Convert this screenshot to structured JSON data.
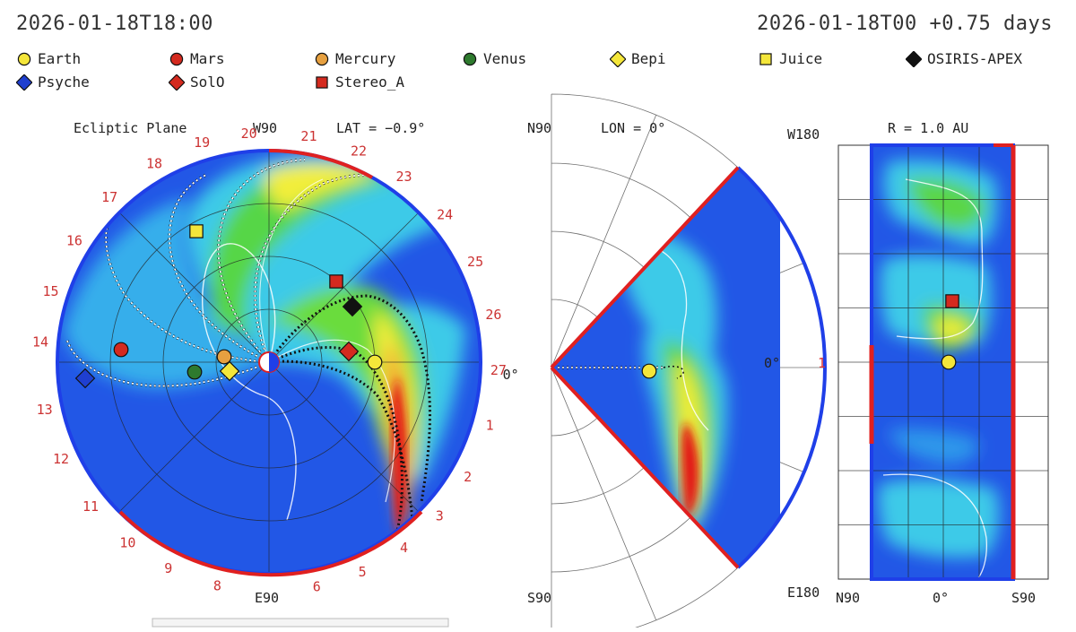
{
  "header": {
    "time_left": "2026-01-18T18:00",
    "time_right": "2026-01-18T00 +0.75 days"
  },
  "legend": [
    {
      "label": "Earth",
      "shape": "circle",
      "color": "#f4e63a"
    },
    {
      "label": "Mars",
      "shape": "circle",
      "color": "#d42a1f"
    },
    {
      "label": "Mercury",
      "shape": "circle",
      "color": "#e6a040"
    },
    {
      "label": "Venus",
      "shape": "circle",
      "color": "#2e7a2e"
    },
    {
      "label": "Bepi",
      "shape": "diamond",
      "color": "#f4e63a"
    },
    {
      "label": "Juice",
      "shape": "square",
      "color": "#f4e63a"
    },
    {
      "label": "OSIRIS-APEX",
      "shape": "diamond",
      "color": "#111111"
    },
    {
      "label": "Psyche",
      "shape": "diamond",
      "color": "#1f3fd0"
    },
    {
      "label": "SolO",
      "shape": "diamond",
      "color": "#d42a1f"
    },
    {
      "label": "Stereo_A",
      "shape": "square",
      "color": "#d42a1f"
    }
  ],
  "colors": {
    "background_blue": "#1f4fe0",
    "cyan": "#3ec8e8",
    "green": "#4cd34c",
    "yellow": "#f4ee3a",
    "orange": "#f09030",
    "red": "#e21818",
    "outline_blue": "#1f3fe8",
    "outline_red": "#e02020"
  },
  "chart_data": [
    {
      "type": "heatmap",
      "panel": "ecliptic",
      "title": "Ecliptic Plane",
      "lat_label": "LAT = −0.9°",
      "top_label": "W90",
      "bottom_label": "E90",
      "right_label": "0°",
      "carrington_ticks": [
        "20",
        "21",
        "22",
        "23",
        "24",
        "25",
        "26",
        "27",
        "0°",
        "1",
        "2",
        "3",
        "4",
        "5",
        "6",
        "8",
        "9",
        "10",
        "11",
        "12",
        "13",
        "14",
        "15",
        "16",
        "17",
        "18",
        "19"
      ],
      "objects": [
        {
          "name": "Earth",
          "shape": "circle",
          "color": "#f4e63a"
        },
        {
          "name": "Mars",
          "shape": "circle",
          "color": "#d42a1f"
        },
        {
          "name": "Mercury",
          "shape": "circle",
          "color": "#e6a040"
        },
        {
          "name": "Venus",
          "shape": "circle",
          "color": "#2e7a2e"
        },
        {
          "name": "Bepi",
          "shape": "diamond",
          "color": "#f4e63a"
        },
        {
          "name": "Juice",
          "shape": "square",
          "color": "#f4e63a"
        },
        {
          "name": "OSIRIS-APEX",
          "shape": "diamond",
          "color": "#111111"
        },
        {
          "name": "Psyche",
          "shape": "diamond",
          "color": "#1f3fd0"
        },
        {
          "name": "SolO",
          "shape": "diamond",
          "color": "#d42a1f"
        },
        {
          "name": "Stereo_A",
          "shape": "square",
          "color": "#d42a1f"
        },
        {
          "name": "Mars",
          "shape": "circle",
          "color": "#d42a1f"
        }
      ]
    },
    {
      "type": "heatmap",
      "panel": "meridional",
      "lon_label": "LON = 0°",
      "top_label": "N90",
      "bottom_label": "S90",
      "right_label": "0°",
      "objects": [
        {
          "name": "Earth",
          "shape": "circle",
          "color": "#f4e63a"
        }
      ]
    },
    {
      "type": "heatmap",
      "panel": "radial",
      "r_label": "R = 1.0 AU",
      "y_top_label": "W180",
      "y_bottom_label": "E180",
      "y_mid_label": "1",
      "x_labels": [
        "N90",
        "0°",
        "S90"
      ],
      "objects": [
        {
          "name": "Stereo_A",
          "shape": "square",
          "color": "#d42a1f"
        },
        {
          "name": "Earth",
          "shape": "circle",
          "color": "#f4e63a"
        }
      ]
    }
  ]
}
